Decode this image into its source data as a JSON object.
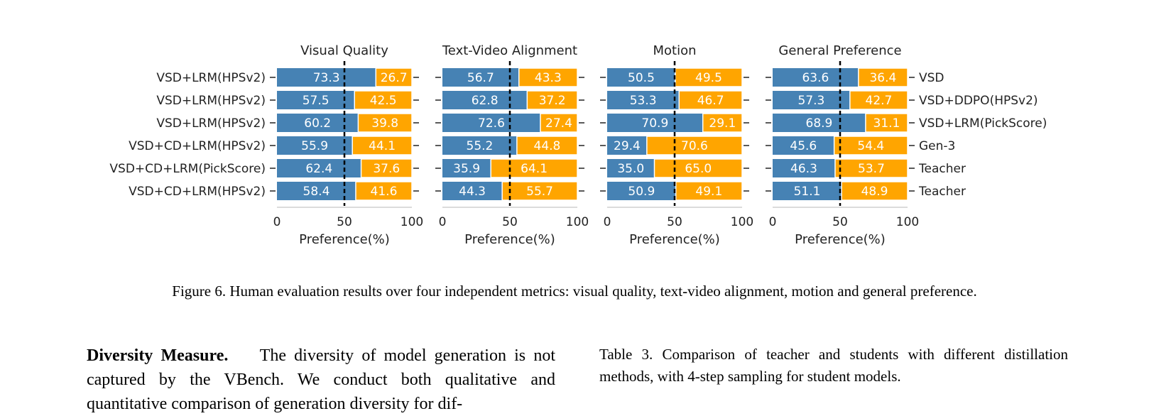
{
  "chart_data": {
    "type": "bar",
    "stacked": true,
    "orientation": "horizontal",
    "xlim": [
      0,
      100
    ],
    "xticks": [
      "0",
      "50",
      "100"
    ],
    "reference_line": 50,
    "left_labels": [
      "VSD+LRM(HPSv2)",
      "VSD+LRM(HPSv2)",
      "VSD+LRM(HPSv2)",
      "VSD+CD+LRM(HPSv2)",
      "VSD+CD+LRM(PickScore)",
      "VSD+CD+LRM(HPSv2)"
    ],
    "right_labels": [
      "VSD",
      "VSD+DDPO(HPSv2)",
      "VSD+LRM(PickScore)",
      "Gen-3",
      "Teacher",
      "Teacher"
    ],
    "panels": [
      {
        "title": "Visual Quality",
        "xlabel": "Preference(%)",
        "values": [
          [
            73.3,
            26.7
          ],
          [
            57.5,
            42.5
          ],
          [
            60.2,
            39.8
          ],
          [
            55.9,
            44.1
          ],
          [
            62.4,
            37.6
          ],
          [
            58.4,
            41.6
          ]
        ],
        "labels": [
          [
            "73.3",
            "26.7"
          ],
          [
            "57.5",
            "42.5"
          ],
          [
            "60.2",
            "39.8"
          ],
          [
            "55.9",
            "44.1"
          ],
          [
            "62.4",
            "37.6"
          ],
          [
            "58.4",
            "41.6"
          ]
        ]
      },
      {
        "title": "Text-Video Alignment",
        "xlabel": "Preference(%)",
        "values": [
          [
            56.7,
            43.3
          ],
          [
            62.8,
            37.2
          ],
          [
            72.6,
            27.4
          ],
          [
            55.2,
            44.8
          ],
          [
            35.9,
            64.1
          ],
          [
            44.3,
            55.7
          ]
        ],
        "labels": [
          [
            "56.7",
            "43.3"
          ],
          [
            "62.8",
            "37.2"
          ],
          [
            "72.6",
            "27.4"
          ],
          [
            "55.2",
            "44.8"
          ],
          [
            "35.9",
            "64.1"
          ],
          [
            "44.3",
            "55.7"
          ]
        ]
      },
      {
        "title": "Motion",
        "xlabel": "Preference(%)",
        "values": [
          [
            50.5,
            49.5
          ],
          [
            53.3,
            46.7
          ],
          [
            70.9,
            29.1
          ],
          [
            29.4,
            70.6
          ],
          [
            35.0,
            65.0
          ],
          [
            50.9,
            49.1
          ]
        ],
        "labels": [
          [
            "50.5",
            "49.5"
          ],
          [
            "53.3",
            "46.7"
          ],
          [
            "70.9",
            "29.1"
          ],
          [
            "29.4",
            "70.6"
          ],
          [
            "35.0",
            "65.0"
          ],
          [
            "50.9",
            "49.1"
          ]
        ]
      },
      {
        "title": "General Preference",
        "xlabel": "Preference(%)",
        "values": [
          [
            63.6,
            36.4
          ],
          [
            57.3,
            42.7
          ],
          [
            68.9,
            31.1
          ],
          [
            45.6,
            54.4
          ],
          [
            46.3,
            53.7
          ],
          [
            51.1,
            48.9
          ]
        ],
        "labels": [
          [
            "63.6",
            "36.4"
          ],
          [
            "57.3",
            "42.7"
          ],
          [
            "68.9",
            "31.1"
          ],
          [
            "45.6",
            "54.4"
          ],
          [
            "46.3",
            "53.7"
          ],
          [
            "51.1",
            "48.9"
          ]
        ]
      }
    ],
    "colors": {
      "left": "#4682B4",
      "right": "#FFA500"
    }
  },
  "figure_caption": "Figure 6. Human evaluation results over four independent metrics: visual quality, text-video alignment, motion and general preference.",
  "diversity": {
    "heading": "Diversity Measure.",
    "text": "The diversity of model generation is not captured by the VBench. We conduct both qualitative and quantitative comparison of generation diversity for dif-"
  },
  "table_caption": "Table 3. Comparison of teacher and students with different distillation methods, with 4-step sampling for student models."
}
